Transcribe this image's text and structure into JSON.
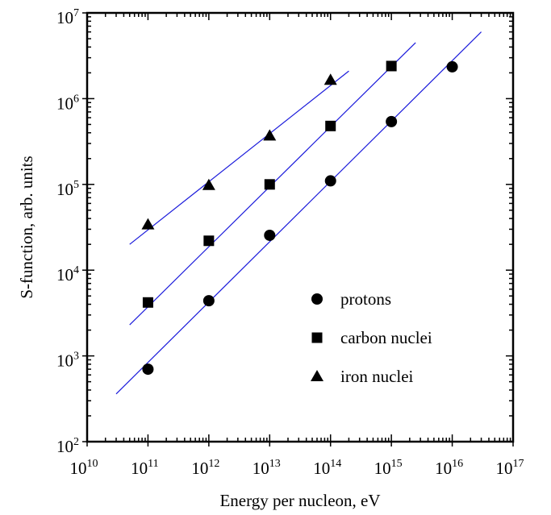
{
  "chart_data": {
    "type": "scatter",
    "xlabel": "Energy per nucleon,  eV",
    "ylabel": "S-function, arb. units",
    "x_scale": "log",
    "y_scale": "log",
    "xlim": [
      10000000000.0,
      1e+17
    ],
    "ylim": [
      100,
      10000000
    ],
    "x_ticks": [
      {
        "base": "10",
        "exp": "10"
      },
      {
        "base": "10",
        "exp": "11"
      },
      {
        "base": "10",
        "exp": "12"
      },
      {
        "base": "10",
        "exp": "13"
      },
      {
        "base": "10",
        "exp": "14"
      },
      {
        "base": "10",
        "exp": "15"
      },
      {
        "base": "10",
        "exp": "16"
      },
      {
        "base": "10",
        "exp": "17"
      }
    ],
    "y_ticks": [
      {
        "base": "10",
        "exp": "2"
      },
      {
        "base": "10",
        "exp": "3"
      },
      {
        "base": "10",
        "exp": "4"
      },
      {
        "base": "10",
        "exp": "5"
      },
      {
        "base": "10",
        "exp": "6"
      },
      {
        "base": "10",
        "exp": "7"
      }
    ],
    "legend_position": "lower-right",
    "fit_line_color": "#1a1adb",
    "marker_color": "#000000",
    "series": [
      {
        "name": "protons",
        "marker": "circle",
        "x": [
          100000000000.0,
          1000000000000.0,
          10000000000000.0,
          100000000000000.0,
          1000000000000000.0,
          1e+16
        ],
        "y": [
          700,
          4400,
          25500,
          110000,
          540000,
          2350000
        ],
        "fit_x": [
          30000000000.0,
          3e+16
        ],
        "fit_y": [
          360,
          6000000
        ]
      },
      {
        "name": "carbon nuclei",
        "marker": "square",
        "x": [
          100000000000.0,
          1000000000000.0,
          10000000000000.0,
          100000000000000.0,
          1000000000000000.0
        ],
        "y": [
          4200,
          22000,
          100000,
          480000,
          2400000
        ],
        "fit_x": [
          50000000000.0,
          2500000000000000.0
        ],
        "fit_y": [
          2300,
          4500000
        ]
      },
      {
        "name": "iron nuclei",
        "marker": "triangle",
        "x": [
          100000000000.0,
          1000000000000.0,
          10000000000000.0,
          100000000000000.0
        ],
        "y": [
          34000,
          98000,
          370000,
          1650000
        ],
        "fit_x": [
          50000000000.0,
          200000000000000.0
        ],
        "fit_y": [
          20000,
          2100000
        ]
      }
    ]
  }
}
